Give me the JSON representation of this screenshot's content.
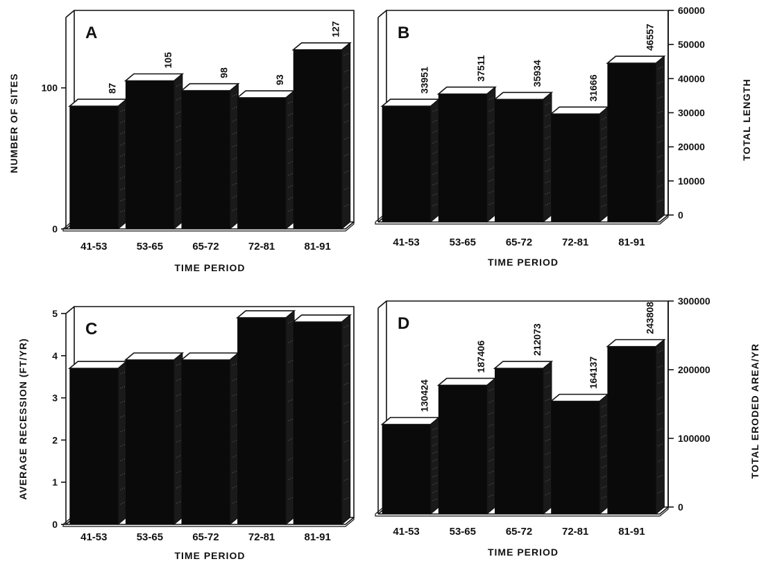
{
  "chart_data": [
    {
      "panel": "A",
      "type": "bar",
      "categories": [
        "41-53",
        "53-65",
        "65-72",
        "72-81",
        "81-91"
      ],
      "values": [
        87,
        105,
        98,
        93,
        127
      ],
      "data_labels": [
        "87",
        "105",
        "98",
        "93",
        "127"
      ],
      "xlabel": "TIME PERIOD",
      "ylabel": "NUMBER OF SITES",
      "y_axis_side": "left",
      "ylim": [
        0,
        150
      ],
      "yticks": [
        0,
        100
      ],
      "grid": false
    },
    {
      "panel": "B",
      "type": "bar",
      "categories": [
        "41-53",
        "53-65",
        "65-72",
        "72-81",
        "81-91"
      ],
      "values": [
        33951,
        37511,
        35934,
        31666,
        46557
      ],
      "data_labels": [
        "33951",
        "37511",
        "35934",
        "31666",
        "46557"
      ],
      "xlabel": "TIME PERIOD",
      "ylabel": "TOTAL LENGTH",
      "y_axis_side": "right",
      "ylim": [
        0,
        60000
      ],
      "yticks": [
        0,
        10000,
        20000,
        30000,
        40000,
        50000,
        60000
      ],
      "grid": false
    },
    {
      "panel": "C",
      "type": "bar",
      "categories": [
        "41-53",
        "53-65",
        "65-72",
        "72-81",
        "81-91"
      ],
      "values": [
        3.7,
        3.9,
        3.9,
        4.9,
        4.8
      ],
      "data_labels": [],
      "xlabel": "TIME PERIOD",
      "ylabel": "AVERAGE RECESSION (FT/YR)",
      "y_axis_side": "left",
      "ylim": [
        0,
        5
      ],
      "yticks": [
        0,
        1,
        2,
        3,
        4,
        5
      ],
      "grid": false
    },
    {
      "panel": "D",
      "type": "bar",
      "categories": [
        "41-53",
        "53-65",
        "65-72",
        "72-81",
        "81-91"
      ],
      "values": [
        130424,
        187406,
        212073,
        164137,
        243808
      ],
      "data_labels": [
        "130424",
        "187406",
        "212073",
        "164137",
        "243808"
      ],
      "xlabel": "TIME PERIOD",
      "ylabel": "TOTAL ERODED AREA/YR",
      "y_axis_side": "right",
      "ylim": [
        0,
        300000
      ],
      "yticks": [
        0,
        100000,
        200000,
        300000
      ],
      "grid": false
    }
  ]
}
